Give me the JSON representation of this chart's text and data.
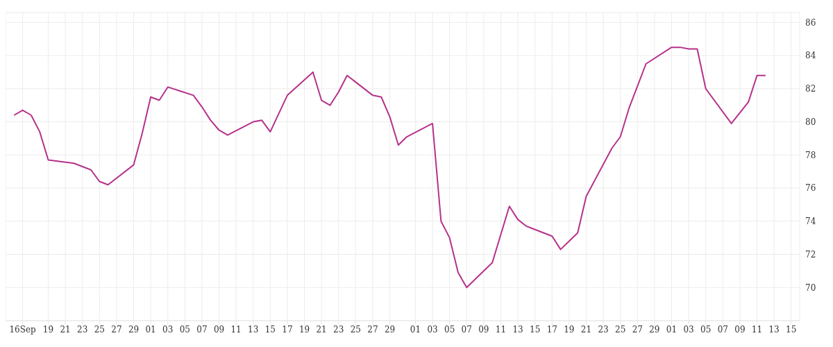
{
  "chart_data": {
    "type": "line",
    "x": [
      "--09-15",
      "--09-16",
      "--09-17",
      "--09-18",
      "--09-19",
      "--09-22",
      "--09-23",
      "--09-24",
      "--09-25",
      "--09-26",
      "--09-29",
      "--09-30",
      "--10-01",
      "--10-02",
      "--10-03",
      "--10-06",
      "--10-07",
      "--10-08",
      "--10-09",
      "--10-10",
      "--10-13",
      "--10-14",
      "--10-15",
      "--10-17",
      "--10-20",
      "--10-21",
      "--10-22",
      "--10-23",
      "--10-24",
      "--10-27",
      "--10-28",
      "--10-29",
      "--10-30",
      "--10-31",
      "--11-03",
      "--11-04",
      "--11-05",
      "--11-06",
      "--11-07",
      "--11-10",
      "--11-12",
      "--11-13",
      "--11-14",
      "--11-17",
      "--11-18",
      "--11-19",
      "--11-20",
      "--11-21",
      "--11-24",
      "--11-25",
      "--11-26",
      "--11-28",
      "--12-01",
      "--12-02",
      "--12-03",
      "--12-04",
      "--12-05",
      "--12-08",
      "--12-10",
      "--12-11",
      "--12-12"
    ],
    "series": [
      {
        "color": "#b5318a",
        "values": [
          80.4,
          80.7,
          80.4,
          79.4,
          77.7,
          77.5,
          77.3,
          77.1,
          76.4,
          76.2,
          77.4,
          79.3,
          81.5,
          81.3,
          82.1,
          81.6,
          80.9,
          80.1,
          79.5,
          79.2,
          80.0,
          80.1,
          79.4,
          81.6,
          83.0,
          81.3,
          81.0,
          81.8,
          82.8,
          81.6,
          81.5,
          80.3,
          78.6,
          79.1,
          79.9,
          74.0,
          73.0,
          70.9,
          70.0,
          71.5,
          74.9,
          74.1,
          73.7,
          73.1,
          72.3,
          72.8,
          73.3,
          75.5,
          78.4,
          79.1,
          80.8,
          83.5,
          84.5,
          84.5,
          84.4,
          84.4,
          82.0,
          79.9,
          81.2,
          82.8,
          82.8
        ]
      }
    ],
    "xlim": [
      "--09-14",
      "--12-16"
    ],
    "xticks": [
      {
        "value": "--09-16",
        "label": "16Sep"
      },
      {
        "value": "--09-19",
        "label": "19"
      },
      {
        "value": "--09-21",
        "label": "21"
      },
      {
        "value": "--09-23",
        "label": "23"
      },
      {
        "value": "--09-25",
        "label": "25"
      },
      {
        "value": "--09-27",
        "label": "27"
      },
      {
        "value": "--09-29",
        "label": "29"
      },
      {
        "value": "--10-01",
        "label": "01"
      },
      {
        "value": "--10-03",
        "label": "03"
      },
      {
        "value": "--10-05",
        "label": "05"
      },
      {
        "value": "--10-07",
        "label": "07"
      },
      {
        "value": "--10-09",
        "label": "09"
      },
      {
        "value": "--10-11",
        "label": "11"
      },
      {
        "value": "--10-13",
        "label": "13"
      },
      {
        "value": "--10-15",
        "label": "15"
      },
      {
        "value": "--10-17",
        "label": "17"
      },
      {
        "value": "--10-19",
        "label": "19"
      },
      {
        "value": "--10-21",
        "label": "21"
      },
      {
        "value": "--10-23",
        "label": "23"
      },
      {
        "value": "--10-25",
        "label": "25"
      },
      {
        "value": "--10-27",
        "label": "27"
      },
      {
        "value": "--10-29",
        "label": "29"
      },
      {
        "value": "--11-01",
        "label": "01"
      },
      {
        "value": "--11-03",
        "label": "03"
      },
      {
        "value": "--11-05",
        "label": "05"
      },
      {
        "value": "--11-07",
        "label": "07"
      },
      {
        "value": "--11-09",
        "label": "09"
      },
      {
        "value": "--11-11",
        "label": "11"
      },
      {
        "value": "--11-13",
        "label": "13"
      },
      {
        "value": "--11-15",
        "label": "15"
      },
      {
        "value": "--11-17",
        "label": "17"
      },
      {
        "value": "--11-19",
        "label": "19"
      },
      {
        "value": "--11-21",
        "label": "21"
      },
      {
        "value": "--11-23",
        "label": "23"
      },
      {
        "value": "--11-25",
        "label": "25"
      },
      {
        "value": "--11-27",
        "label": "27"
      },
      {
        "value": "--11-29",
        "label": "29"
      },
      {
        "value": "--12-01",
        "label": "01"
      },
      {
        "value": "--12-03",
        "label": "03"
      },
      {
        "value": "--12-05",
        "label": "05"
      },
      {
        "value": "--12-07",
        "label": "07"
      },
      {
        "value": "--12-09",
        "label": "09"
      },
      {
        "value": "--12-11",
        "label": "11"
      },
      {
        "value": "--12-13",
        "label": "13"
      },
      {
        "value": "--12-15",
        "label": "15"
      }
    ],
    "ylim": [
      68,
      86.6
    ],
    "yticks": [
      70,
      72,
      74,
      76,
      78,
      80,
      82,
      84,
      86
    ],
    "grid": true,
    "marker": "none",
    "line_style": "solid"
  }
}
